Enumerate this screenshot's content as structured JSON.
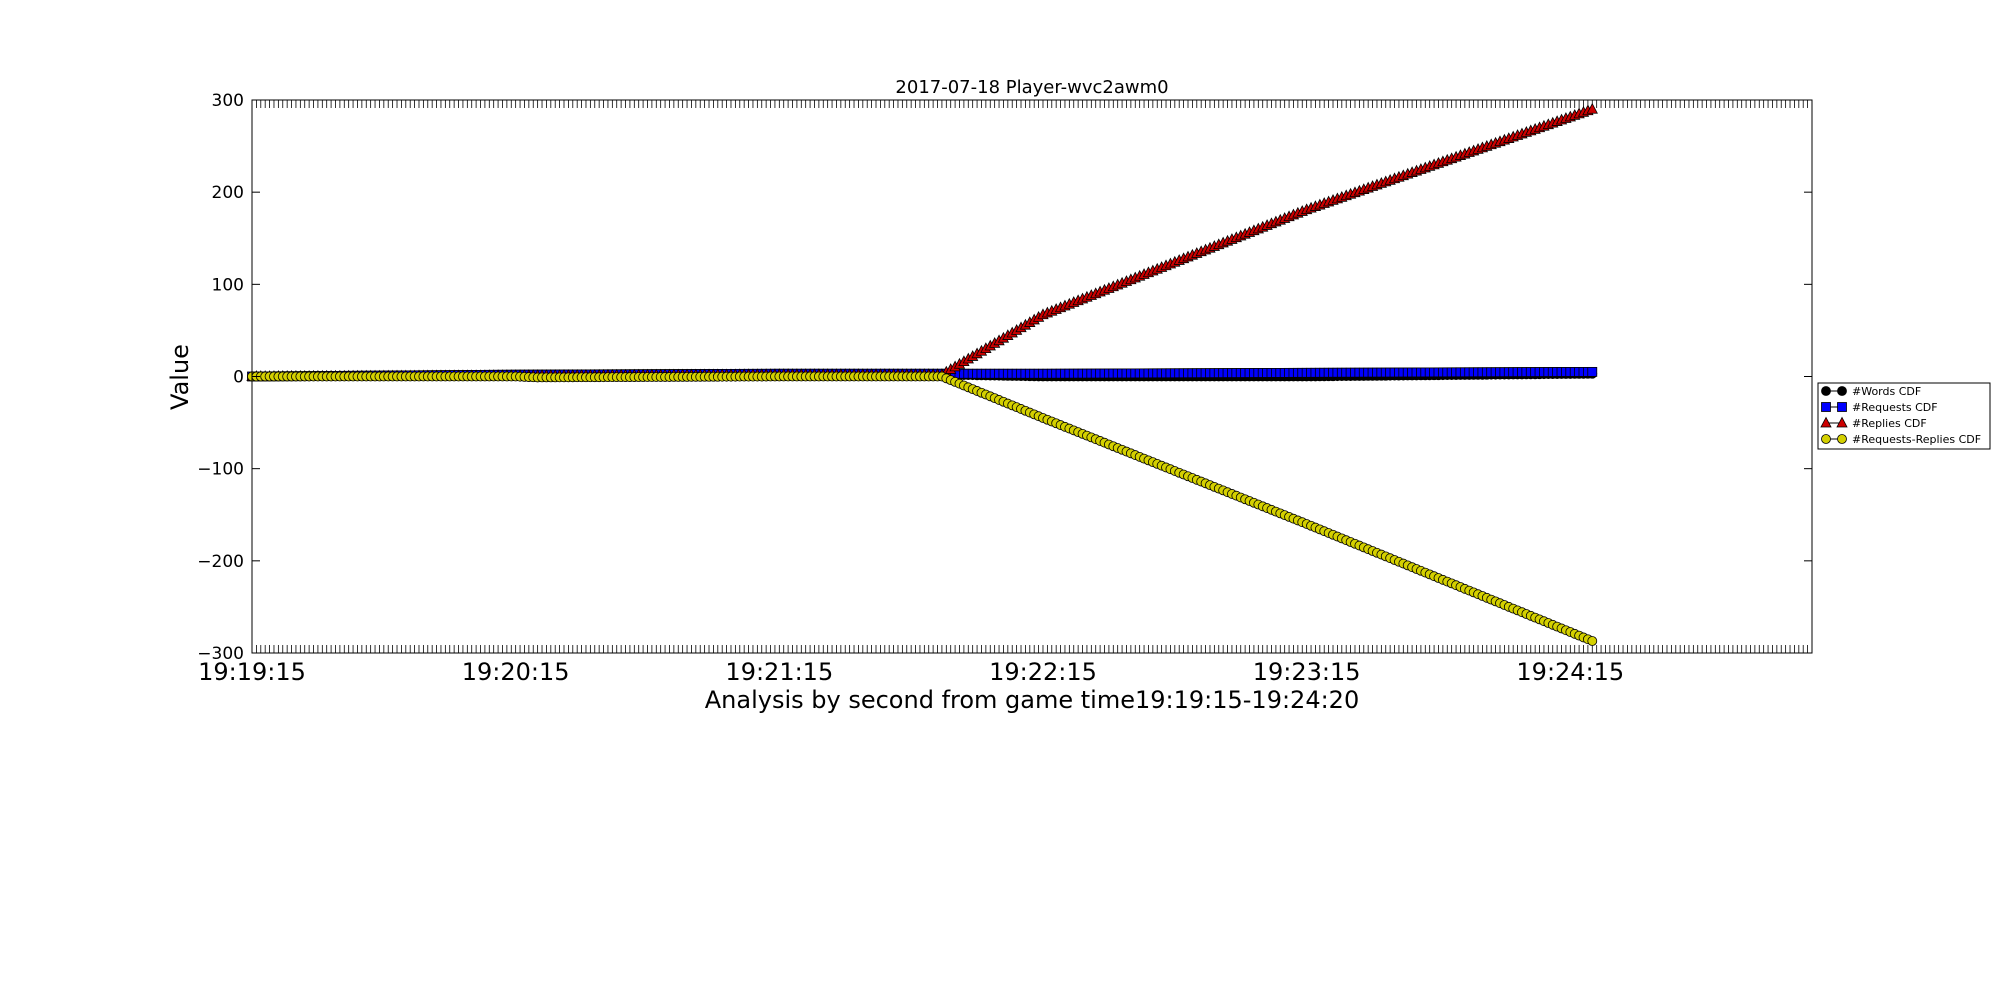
{
  "chart_data": {
    "type": "scatter",
    "title": "2017-07-18 Player-wvc2awm0",
    "xlabel": "Analysis by second from game time19:19:15-19:24:20",
    "ylabel": "Value",
    "x_start": "19:19:15",
    "x_end": "19:25:10",
    "xlim": [
      "19:19:15",
      "19:25:10"
    ],
    "ylim": [
      -300,
      300
    ],
    "x_ticks": [
      "19:19:15",
      "19:20:15",
      "19:21:15",
      "19:22:15",
      "19:23:15",
      "19:24:15"
    ],
    "y_ticks": [
      "300",
      "200",
      "100",
      "0",
      "−100",
      "−200",
      "−300"
    ],
    "grid": false,
    "legend_position": "right",
    "series": [
      {
        "name": "#Words CDF",
        "marker": "circle",
        "color": "#000000",
        "sampled_every_seconds": 1,
        "points": [
          [
            "19:19:15",
            0
          ],
          [
            "19:20:15",
            1
          ],
          [
            "19:21:15",
            2
          ],
          [
            "19:21:52",
            2
          ],
          [
            "19:22:15",
            0
          ],
          [
            "19:23:15",
            0
          ],
          [
            "19:24:20",
            3
          ]
        ]
      },
      {
        "name": "#Requests CDF",
        "marker": "square",
        "color": "#0000ff",
        "sampled_every_seconds": 1,
        "points": [
          [
            "19:19:15",
            0
          ],
          [
            "19:20:15",
            2
          ],
          [
            "19:21:15",
            3
          ],
          [
            "19:21:52",
            3
          ],
          [
            "19:22:15",
            3
          ],
          [
            "19:23:15",
            4
          ],
          [
            "19:24:20",
            5
          ]
        ]
      },
      {
        "name": "#Replies CDF",
        "marker": "triangle",
        "color": "#cc0000",
        "sampled_every_seconds": 1,
        "points": [
          [
            "19:19:15",
            0
          ],
          [
            "19:20:15",
            1
          ],
          [
            "19:21:15",
            2
          ],
          [
            "19:21:52",
            2
          ],
          [
            "19:22:15",
            67
          ],
          [
            "19:23:15",
            181
          ],
          [
            "19:24:20",
            290
          ]
        ]
      },
      {
        "name": "#Requests-Replies CDF",
        "marker": "circle",
        "color": "#d4d000",
        "sampled_every_seconds": 1,
        "points": [
          [
            "19:19:15",
            0
          ],
          [
            "19:20:15",
            0
          ],
          [
            "19:20:20",
            -1
          ],
          [
            "19:21:15",
            0
          ],
          [
            "19:21:52",
            0
          ],
          [
            "19:22:15",
            -45
          ],
          [
            "19:23:15",
            -160
          ],
          [
            "19:24:20",
            -287
          ]
        ]
      }
    ]
  }
}
